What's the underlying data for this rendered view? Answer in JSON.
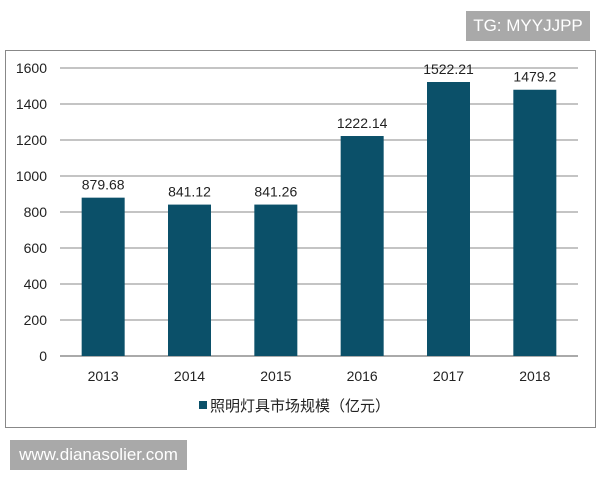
{
  "watermarks": {
    "top": "TG: MYYJJPP",
    "bottom": "www.dianasolier.com"
  },
  "chart_data": {
    "type": "bar",
    "title": "",
    "xlabel": "",
    "ylabel": "",
    "categories": [
      "2013",
      "2014",
      "2015",
      "2016",
      "2017",
      "2018"
    ],
    "series": [
      {
        "name": "照明灯具市场规模（亿元）",
        "values": [
          879.68,
          841.12,
          841.26,
          1222.14,
          1522.21,
          1479.2
        ],
        "labels": [
          "879.68",
          "841.12",
          "841.26",
          "1222.14",
          "1522.21",
          "1479.2"
        ],
        "color": "#0b5069"
      }
    ],
    "ylim": [
      0,
      1600
    ],
    "yticks": [
      "0",
      "200",
      "400",
      "600",
      "800",
      "1000",
      "1200",
      "1400",
      "1600"
    ],
    "grid": true,
    "legend": "bottom"
  }
}
